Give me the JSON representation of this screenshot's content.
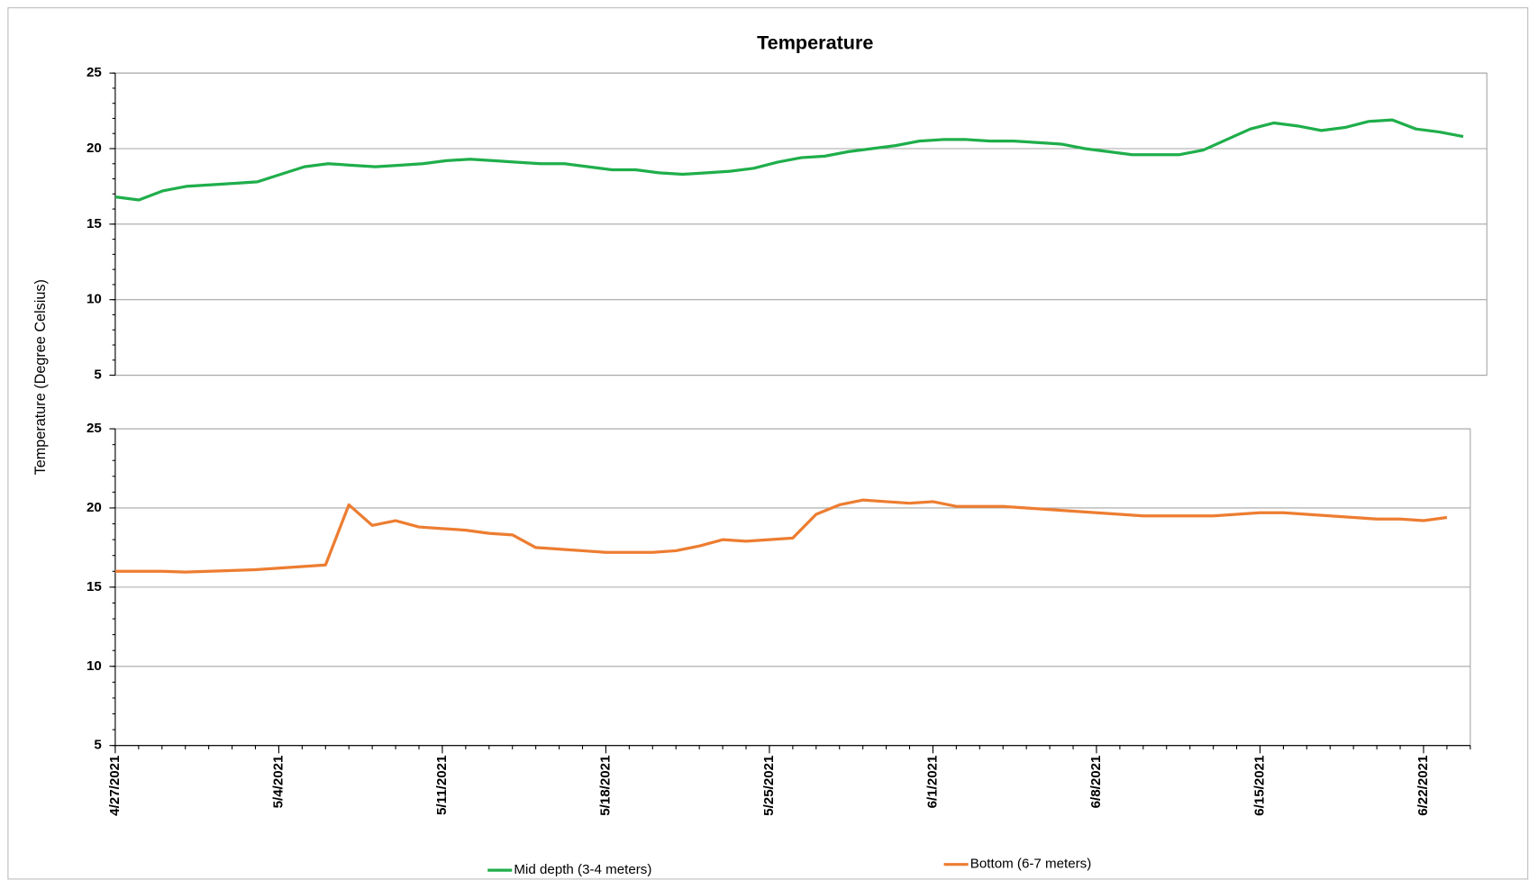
{
  "title": "Temperature",
  "y_label": "Temperature  (Degree Celsius)",
  "chart_data": [
    {
      "type": "line",
      "ylim": [
        5,
        25
      ],
      "yticks": [
        5,
        10,
        15,
        20,
        25
      ],
      "grid": true,
      "xlim": [
        "4/27/2021",
        "6/24/2021"
      ],
      "x": [
        "4/27/2021",
        "4/28/2021",
        "4/29/2021",
        "4/30/2021",
        "5/1/2021",
        "5/2/2021",
        "5/3/2021",
        "5/4/2021",
        "5/5/2021",
        "5/6/2021",
        "5/7/2021",
        "5/8/2021",
        "5/9/2021",
        "5/10/2021",
        "5/11/2021",
        "5/12/2021",
        "5/13/2021",
        "5/14/2021",
        "5/15/2021",
        "5/16/2021",
        "5/17/2021",
        "5/18/2021",
        "5/19/2021",
        "5/20/2021",
        "5/21/2021",
        "5/22/2021",
        "5/23/2021",
        "5/24/2021",
        "5/25/2021",
        "5/26/2021",
        "5/27/2021",
        "5/28/2021",
        "5/29/2021",
        "5/30/2021",
        "5/31/2021",
        "6/1/2021",
        "6/2/2021",
        "6/3/2021",
        "6/4/2021",
        "6/5/2021",
        "6/6/2021",
        "6/7/2021",
        "6/8/2021",
        "6/9/2021",
        "6/10/2021",
        "6/11/2021",
        "6/12/2021",
        "6/13/2021",
        "6/14/2021",
        "6/15/2021",
        "6/16/2021",
        "6/17/2021",
        "6/18/2021",
        "6/19/2021",
        "6/20/2021",
        "6/21/2021",
        "6/22/2021",
        "6/23/2021"
      ],
      "series": [
        {
          "name": "Mid depth (3-4 meters)",
          "color": "#1fae4b",
          "values": [
            16.8,
            16.6,
            17.2,
            17.5,
            17.6,
            17.7,
            17.8,
            18.3,
            18.8,
            19.0,
            18.9,
            18.8,
            18.9,
            19.0,
            19.2,
            19.3,
            19.2,
            19.1,
            19.0,
            19.0,
            18.8,
            18.6,
            18.6,
            18.4,
            18.3,
            18.4,
            18.5,
            18.7,
            19.1,
            19.4,
            19.5,
            19.8,
            20.0,
            20.2,
            20.5,
            20.6,
            20.6,
            20.5,
            20.5,
            20.4,
            20.3,
            20.0,
            19.8,
            19.6,
            19.6,
            19.6,
            19.9,
            20.6,
            21.3,
            21.7,
            21.5,
            21.2,
            21.4,
            21.8,
            21.9,
            21.3,
            21.1,
            20.8
          ]
        }
      ]
    },
    {
      "type": "line",
      "ylim": [
        5,
        25
      ],
      "yticks": [
        5,
        10,
        15,
        20,
        25
      ],
      "grid": true,
      "xlim": [
        "4/27/2021",
        "6/24/2021"
      ],
      "xticks": [
        "4/27/2021",
        "5/4/2021",
        "5/11/2021",
        "5/18/2021",
        "5/25/2021",
        "6/1/2021",
        "6/8/2021",
        "6/15/2021",
        "6/22/2021"
      ],
      "x": [
        "4/27/2021",
        "4/28/2021",
        "4/29/2021",
        "4/30/2021",
        "5/1/2021",
        "5/2/2021",
        "5/3/2021",
        "5/4/2021",
        "5/5/2021",
        "5/6/2021",
        "5/7/2021",
        "5/8/2021",
        "5/9/2021",
        "5/10/2021",
        "5/11/2021",
        "5/12/2021",
        "5/13/2021",
        "5/14/2021",
        "5/15/2021",
        "5/16/2021",
        "5/17/2021",
        "5/18/2021",
        "5/19/2021",
        "5/20/2021",
        "5/21/2021",
        "5/22/2021",
        "5/23/2021",
        "5/24/2021",
        "5/25/2021",
        "5/26/2021",
        "5/27/2021",
        "5/28/2021",
        "5/29/2021",
        "5/30/2021",
        "5/31/2021",
        "6/1/2021",
        "6/2/2021",
        "6/3/2021",
        "6/4/2021",
        "6/5/2021",
        "6/6/2021",
        "6/7/2021",
        "6/8/2021",
        "6/9/2021",
        "6/10/2021",
        "6/11/2021",
        "6/12/2021",
        "6/13/2021",
        "6/14/2021",
        "6/15/2021",
        "6/16/2021",
        "6/17/2021",
        "6/18/2021",
        "6/19/2021",
        "6/20/2021",
        "6/21/2021",
        "6/22/2021",
        "6/23/2021"
      ],
      "series": [
        {
          "name": "Bottom (6-7 meters)",
          "color": "#ed7d31",
          "values": [
            16.0,
            16.0,
            16.0,
            15.95,
            16.0,
            16.05,
            16.1,
            16.2,
            16.3,
            16.4,
            20.2,
            18.9,
            19.2,
            18.8,
            18.7,
            18.6,
            18.4,
            18.3,
            17.5,
            17.4,
            17.3,
            17.2,
            17.2,
            17.2,
            17.3,
            17.6,
            18.0,
            17.9,
            18.0,
            18.1,
            19.6,
            20.2,
            20.5,
            20.4,
            20.3,
            20.4,
            20.1,
            20.1,
            20.1,
            20.0,
            19.9,
            19.8,
            19.7,
            19.6,
            19.5,
            19.5,
            19.5,
            19.5,
            19.6,
            19.7,
            19.7,
            19.6,
            19.5,
            19.4,
            19.3,
            19.3,
            19.2,
            19.4
          ]
        }
      ]
    }
  ]
}
